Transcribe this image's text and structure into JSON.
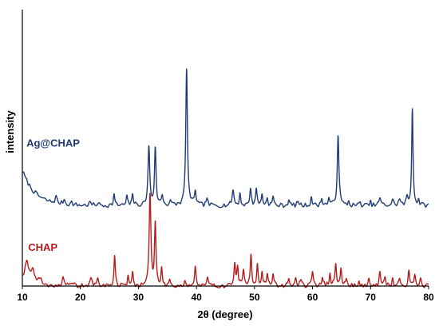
{
  "chart_data": {
    "type": "line",
    "xlabel": "2θ (degree)",
    "ylabel": "intensity",
    "xlim": [
      10,
      80
    ],
    "xticks": [
      10,
      20,
      30,
      40,
      50,
      60,
      70,
      80
    ],
    "grid": false,
    "legend": "none",
    "y_units": "arbitrary",
    "ylim": [
      0,
      11
    ],
    "series": [
      {
        "name": "Ag@CHAP",
        "color": "#1f3a76",
        "baseline": 3.2,
        "label_pos": [
          10.7,
          5.55
        ],
        "noise_seed": 7,
        "start_rise": {
          "amp": 1.4,
          "decay": 2.2
        },
        "peaks": [
          [
            15.8,
            0.25,
            0.2
          ],
          [
            17.2,
            0.2,
            0.2
          ],
          [
            18.5,
            0.1,
            0.2
          ],
          [
            21.7,
            0.12,
            0.2
          ],
          [
            23.0,
            0.1,
            0.2
          ],
          [
            25.8,
            0.45,
            0.14
          ],
          [
            28.0,
            0.35,
            0.14
          ],
          [
            29.0,
            0.5,
            0.14
          ],
          [
            31.8,
            2.3,
            0.18
          ],
          [
            32.9,
            2.25,
            0.16
          ],
          [
            34.1,
            0.4,
            0.18
          ],
          [
            35.5,
            0.2,
            0.15
          ],
          [
            38.3,
            5.4,
            0.17
          ],
          [
            39.8,
            0.6,
            0.16
          ],
          [
            41.8,
            0.3,
            0.15
          ],
          [
            46.3,
            0.6,
            0.2
          ],
          [
            47.5,
            0.45,
            0.15
          ],
          [
            49.3,
            0.7,
            0.15
          ],
          [
            50.3,
            0.7,
            0.15
          ],
          [
            51.3,
            0.45,
            0.15
          ],
          [
            52.2,
            0.3,
            0.15
          ],
          [
            53.2,
            0.35,
            0.15
          ],
          [
            55.9,
            0.25,
            0.15
          ],
          [
            57.5,
            0.2,
            0.15
          ],
          [
            59.8,
            0.35,
            0.15
          ],
          [
            61.6,
            0.3,
            0.15
          ],
          [
            62.8,
            0.3,
            0.15
          ],
          [
            64.4,
            2.85,
            0.17
          ],
          [
            66.2,
            0.15,
            0.15
          ],
          [
            68.2,
            0.12,
            0.15
          ],
          [
            70.0,
            0.12,
            0.15
          ],
          [
            71.6,
            0.3,
            0.2
          ],
          [
            73.8,
            0.2,
            0.2
          ],
          [
            75.0,
            0.25,
            0.2
          ],
          [
            76.3,
            0.3,
            0.18
          ],
          [
            77.2,
            3.9,
            0.14
          ],
          [
            78.3,
            0.2,
            0.15
          ]
        ]
      },
      {
        "name": "CHAP",
        "color": "#b71c1c",
        "baseline": 0.0,
        "label_pos": [
          11.0,
          1.4
        ],
        "noise_seed": 19,
        "start_rise": {
          "amp": 0.35,
          "decay": 1.5
        },
        "peaks": [
          [
            10.8,
            0.8,
            0.35
          ],
          [
            11.8,
            0.6,
            0.3
          ],
          [
            13.0,
            0.25,
            0.3
          ],
          [
            17.0,
            0.3,
            0.2
          ],
          [
            18.7,
            0.15,
            0.2
          ],
          [
            21.8,
            0.3,
            0.2
          ],
          [
            23.0,
            0.25,
            0.2
          ],
          [
            25.9,
            1.2,
            0.14
          ],
          [
            28.2,
            0.35,
            0.14
          ],
          [
            29.0,
            0.5,
            0.14
          ],
          [
            32.0,
            3.6,
            0.18
          ],
          [
            32.9,
            2.4,
            0.15
          ],
          [
            34.0,
            0.6,
            0.15
          ],
          [
            35.4,
            0.25,
            0.15
          ],
          [
            38.0,
            0.2,
            0.15
          ],
          [
            39.8,
            0.75,
            0.15
          ],
          [
            41.9,
            0.3,
            0.15
          ],
          [
            46.6,
            0.9,
            0.16
          ],
          [
            47.1,
            0.7,
            0.15
          ],
          [
            48.1,
            0.55,
            0.15
          ],
          [
            49.4,
            1.25,
            0.15
          ],
          [
            50.5,
            0.85,
            0.15
          ],
          [
            51.3,
            0.55,
            0.15
          ],
          [
            52.2,
            0.45,
            0.15
          ],
          [
            53.2,
            0.5,
            0.15
          ],
          [
            55.9,
            0.3,
            0.15
          ],
          [
            57.1,
            0.3,
            0.15
          ],
          [
            58.0,
            0.3,
            0.15
          ],
          [
            60.0,
            0.55,
            0.15
          ],
          [
            61.7,
            0.4,
            0.15
          ],
          [
            63.0,
            0.55,
            0.15
          ],
          [
            64.0,
            0.8,
            0.15
          ],
          [
            64.9,
            0.7,
            0.15
          ],
          [
            65.8,
            0.3,
            0.15
          ],
          [
            68.0,
            0.25,
            0.15
          ],
          [
            69.7,
            0.25,
            0.15
          ],
          [
            71.6,
            0.5,
            0.15
          ],
          [
            72.5,
            0.35,
            0.15
          ],
          [
            73.8,
            0.3,
            0.15
          ],
          [
            75.0,
            0.35,
            0.15
          ],
          [
            76.6,
            0.6,
            0.15
          ],
          [
            77.6,
            0.45,
            0.15
          ],
          [
            78.6,
            0.3,
            0.15
          ]
        ]
      }
    ]
  }
}
